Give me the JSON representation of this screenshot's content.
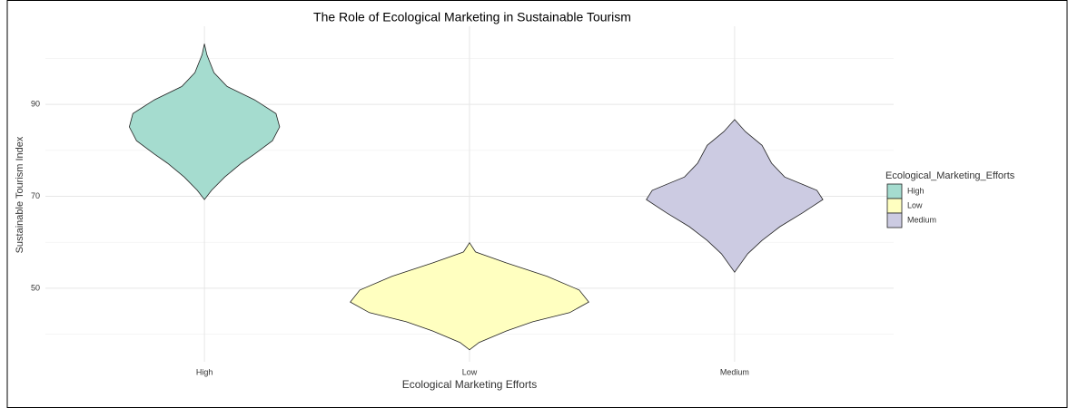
{
  "chart_data": {
    "type": "violin",
    "title": "The Role of Ecological Marketing in Sustainable Tourism",
    "x_label": "Ecological Marketing Efforts",
    "y_label": "Sustainable Tourism Index",
    "categories": [
      "High",
      "Low",
      "Medium"
    ],
    "colors": [
      "#a5dccf",
      "#ffffc0",
      "#cccbe2"
    ],
    "violins": [
      {
        "y": [
          103.2,
          100.8,
          96.9,
          93.9,
          91.0,
          88.0,
          85.1,
          82.1,
          79.2,
          77.2,
          74.2,
          71.3,
          69.3
        ],
        "width": [
          0,
          0.02,
          0.08,
          0.19,
          0.42,
          0.6,
          0.63,
          0.57,
          0.42,
          0.31,
          0.17,
          0.06,
          0
        ]
      },
      {
        "y": [
          59.9,
          57.9,
          55.5,
          52.6,
          49.6,
          47.0,
          44.7,
          42.7,
          40.7,
          38.2,
          36.6
        ],
        "width": [
          0,
          0.05,
          0.31,
          0.65,
          0.92,
          1,
          0.84,
          0.53,
          0.31,
          0.08,
          0
        ]
      },
      {
        "y": [
          86.7,
          84.1,
          81.1,
          77.2,
          74.2,
          71.3,
          69.3,
          66.4,
          63.4,
          60.4,
          57.5,
          53.5
        ],
        "width": [
          0,
          0.09,
          0.23,
          0.31,
          0.42,
          0.69,
          0.74,
          0.57,
          0.38,
          0.23,
          0.11,
          0
        ]
      }
    ],
    "ylim": [
      34,
      107
    ],
    "yticks": [
      50,
      70,
      90
    ],
    "minor_yticks": [
      40,
      60,
      80,
      100
    ],
    "grid": true,
    "legend": {
      "title": "Ecological_Marketing_Efforts",
      "position": "right"
    }
  }
}
